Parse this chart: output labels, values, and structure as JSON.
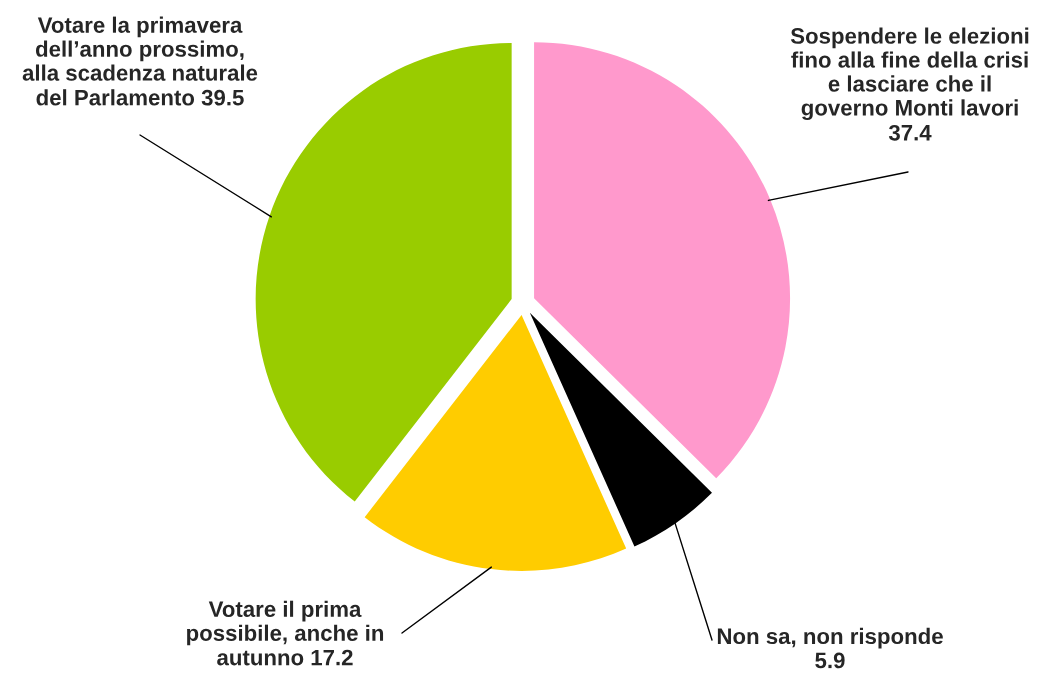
{
  "chart_data": {
    "type": "pie",
    "categories": [
      "Sospendere le elezioni\nfino alla fine della crisi\ne lasciare che il\ngoverno Monti lavori",
      "Non sa, non risponde",
      "Votare il prima\npossibile, anche in\nautunno",
      "Votare la primavera\ndell’anno prossimo,\nalla scadenza naturale\ndel Parlamento"
    ],
    "values": [
      37.4,
      5.9,
      17.2,
      39.5
    ],
    "colors": [
      "#ff99cc",
      "#000000",
      "#ffcc00",
      "#99cc00"
    ],
    "data_labels": true
  }
}
